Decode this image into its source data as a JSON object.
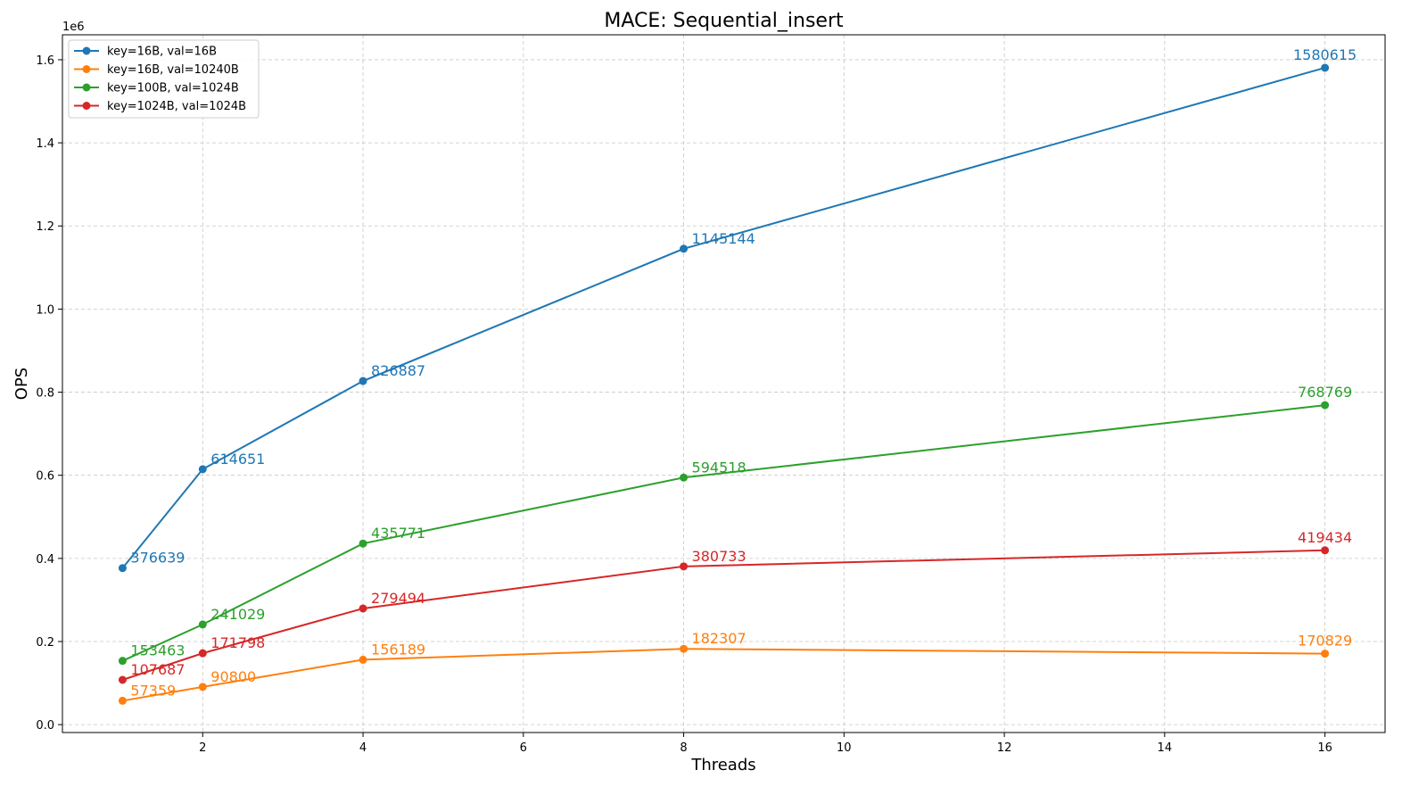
{
  "chart_data": {
    "type": "line",
    "title": "MACE: Sequential_insert",
    "xlabel": "Threads",
    "ylabel": "OPS",
    "y_offset_text": "1e6",
    "xlim": [
      0.25,
      16.75
    ],
    "ylim": [
      -0.019,
      1.66
    ],
    "x_ticks": [
      2,
      4,
      6,
      8,
      10,
      12,
      14,
      16
    ],
    "y_ticks": [
      0.0,
      0.2,
      0.4,
      0.6,
      0.8,
      1.0,
      1.2,
      1.4,
      1.6
    ],
    "y_tick_labels": [
      "0.0",
      "0.2",
      "0.4",
      "0.6",
      "0.8",
      "1.0",
      "1.2",
      "1.4",
      "1.6"
    ],
    "grid": true,
    "legend_position": "top-left",
    "x": [
      1,
      2,
      4,
      8,
      16
    ],
    "series": [
      {
        "name": "key=16B, val=16B",
        "color": "#1f77b4",
        "values": [
          376639,
          614651,
          826887,
          1145144,
          1580615
        ],
        "labels": [
          "376639",
          "614651",
          "826887",
          "1145144",
          "1580615"
        ]
      },
      {
        "name": "key=16B, val=10240B",
        "color": "#ff7f0e",
        "values": [
          57359,
          90800,
          156189,
          182307,
          170829
        ],
        "labels": [
          "57359",
          "90800",
          "156189",
          "182307",
          "170829"
        ]
      },
      {
        "name": "key=100B, val=1024B",
        "color": "#2ca02c",
        "values": [
          153463,
          241029,
          435771,
          594518,
          768769
        ],
        "labels": [
          "153463",
          "241029",
          "435771",
          "594518",
          "768769"
        ]
      },
      {
        "name": "key=1024B, val=1024B",
        "color": "#d62728",
        "values": [
          107687,
          171798,
          279494,
          380733,
          419434
        ],
        "labels": [
          "107687",
          "171798",
          "279494",
          "380733",
          "419434"
        ]
      }
    ]
  }
}
